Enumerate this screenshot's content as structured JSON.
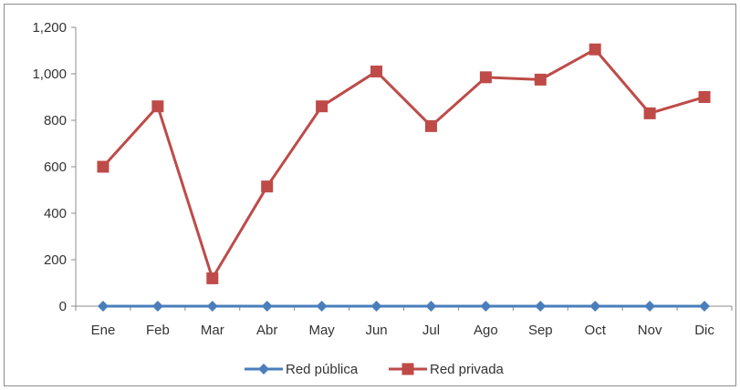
{
  "chart_data": {
    "type": "line",
    "categories": [
      "Ene",
      "Feb",
      "Mar",
      "Abr",
      "May",
      "Jun",
      "Jul",
      "Ago",
      "Sep",
      "Oct",
      "Nov",
      "Dic"
    ],
    "series": [
      {
        "name": "Red pública",
        "values": [
          0,
          0,
          0,
          0,
          0,
          0,
          0,
          0,
          0,
          0,
          0,
          0
        ],
        "color": "#4a7ebb",
        "marker": "diamond"
      },
      {
        "name": "Red privada",
        "values": [
          600,
          860,
          120,
          515,
          860,
          1010,
          775,
          985,
          975,
          1105,
          830,
          900
        ],
        "color": "#be4b48",
        "marker": "square"
      }
    ],
    "ylim": [
      0,
      1200
    ],
    "yticks": [
      0,
      200,
      400,
      600,
      800,
      1000,
      1200
    ],
    "ytick_labels": [
      "0",
      "200",
      "400",
      "600",
      "800",
      "1,000",
      "1,200"
    ],
    "grid": false,
    "legend": "bottom",
    "title": "",
    "xlabel": "",
    "ylabel": ""
  }
}
